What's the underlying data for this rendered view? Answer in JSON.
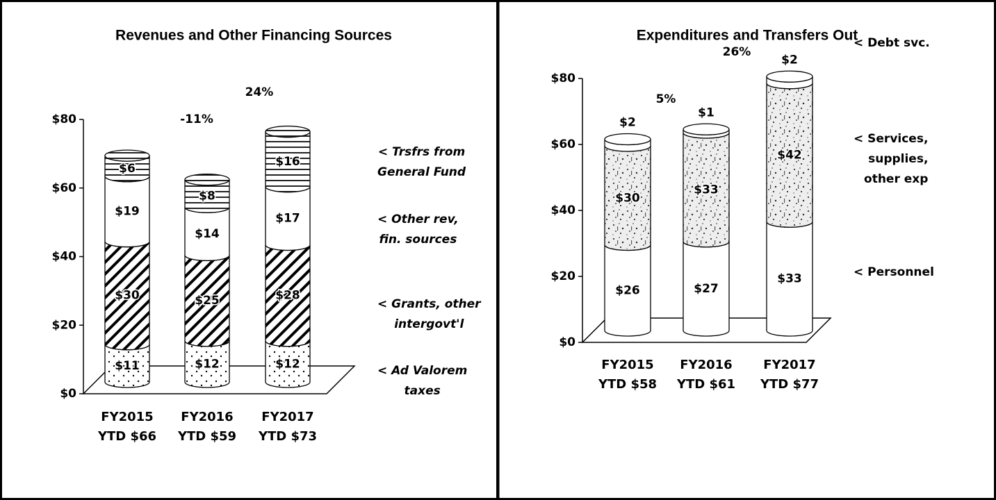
{
  "chart_data": [
    {
      "type": "cylinder-stacked-bar",
      "title": "Revenues and Other Financing Sources",
      "categories": [
        [
          "FY2015",
          "YTD $66"
        ],
        [
          "FY2016",
          "YTD $59"
        ],
        [
          "FY2017",
          "YTD $73"
        ]
      ],
      "series": [
        {
          "name": "< Ad Valorem\ntaxes",
          "color": "#000000",
          "pattern": "dots",
          "values": [
            11,
            12,
            12
          ],
          "value_labels": [
            "$11",
            "$12",
            "$12"
          ]
        },
        {
          "name": "< Grants, other\nintergovt'l",
          "color": "#000000",
          "pattern": "hatch",
          "values": [
            30,
            25,
            28
          ],
          "value_labels": [
            "$30",
            "$25",
            "$28"
          ]
        },
        {
          "name": "< Other rev,\nfin. sources",
          "color": "#ffffff",
          "pattern": "none",
          "values": [
            19,
            14,
            17
          ],
          "value_labels": [
            "$19",
            "$14",
            "$17"
          ]
        },
        {
          "name": "< Trsfrs from\nGeneral Fund",
          "color": "#000000",
          "pattern": "lines",
          "values": [
            6,
            8,
            16
          ],
          "value_labels": [
            "$6",
            "$8",
            "$16"
          ]
        }
      ],
      "change_labels": [
        "-11%",
        "24%"
      ],
      "ylim": [
        0,
        80
      ],
      "yticks": [
        {
          "value": 0,
          "label": "$0"
        },
        {
          "value": 20,
          "label": "$20"
        },
        {
          "value": 40,
          "label": "$40"
        },
        {
          "value": 60,
          "label": "$60"
        },
        {
          "value": 80,
          "label": "$80"
        }
      ],
      "legend_style": "italic"
    },
    {
      "type": "cylinder-stacked-bar",
      "title": "Expenditures and Transfers Out",
      "categories": [
        [
          "FY2015",
          "YTD $58"
        ],
        [
          "FY2016",
          "YTD $61"
        ],
        [
          "FY2017",
          "YTD $77"
        ]
      ],
      "series": [
        {
          "name": "< Personnel",
          "color": "#ffffff",
          "pattern": "none",
          "values": [
            26,
            27,
            33
          ],
          "value_labels": [
            "$26",
            "$27",
            "$33"
          ]
        },
        {
          "name": "< Services,\nsupplies,\nother exp",
          "color": "#555555",
          "pattern": "speckle",
          "values": [
            30,
            33,
            42
          ],
          "value_labels": [
            "$30",
            "$33",
            "$42"
          ]
        },
        {
          "name": "< Debt svc.",
          "color": "#ffffff",
          "pattern": "none",
          "values": [
            2,
            1,
            2
          ],
          "value_labels": [
            "$2",
            "$1",
            "$2"
          ]
        }
      ],
      "change_labels": [
        "5%",
        "26%"
      ],
      "ylim": [
        0,
        80
      ],
      "yticks": [
        {
          "value": 0,
          "label": "$0"
        },
        {
          "value": 20,
          "label": "$20"
        },
        {
          "value": 40,
          "label": "$40"
        },
        {
          "value": 60,
          "label": "$60"
        },
        {
          "value": 80,
          "label": "$80"
        }
      ],
      "legend_style": "normal"
    }
  ]
}
